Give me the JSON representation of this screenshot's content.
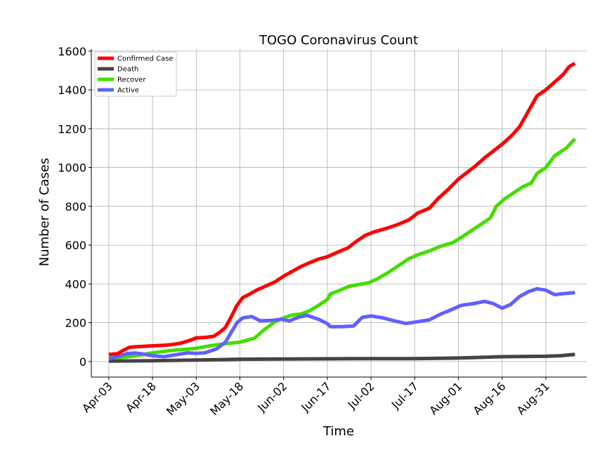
{
  "chart_data": {
    "type": "line",
    "title": "TOGO Coronavirus Count",
    "xlabel": "Time",
    "ylabel": "Number of Cases",
    "x_ticks": [
      "Apr-03",
      "Apr-18",
      "May-03",
      "May-18",
      "Jun-02",
      "Jun-17",
      "Jul-02",
      "Jul-17",
      "Aug-01",
      "Aug-16",
      "Aug-31"
    ],
    "y_ticks": [
      0,
      200,
      400,
      600,
      800,
      1000,
      1200,
      1400,
      1600
    ],
    "ylim": [
      -80,
      1610
    ],
    "xlim": [
      "2020-03-28",
      "2020-09-14"
    ],
    "grid": true,
    "legend_position": "top-left",
    "series": [
      {
        "name": "Confirmed Case",
        "color": "#ff0000",
        "points": [
          [
            "2020-04-03",
            36
          ],
          [
            "2020-04-06",
            40
          ],
          [
            "2020-04-08",
            58
          ],
          [
            "2020-04-10",
            73
          ],
          [
            "2020-04-12",
            76
          ],
          [
            "2020-04-15",
            78
          ],
          [
            "2020-04-18",
            81
          ],
          [
            "2020-04-22",
            84
          ],
          [
            "2020-04-25",
            88
          ],
          [
            "2020-04-28",
            96
          ],
          [
            "2020-05-01",
            110
          ],
          [
            "2020-05-03",
            122
          ],
          [
            "2020-05-06",
            124
          ],
          [
            "2020-05-09",
            130
          ],
          [
            "2020-05-11",
            150
          ],
          [
            "2020-05-13",
            175
          ],
          [
            "2020-05-15",
            230
          ],
          [
            "2020-05-17",
            290
          ],
          [
            "2020-05-19",
            330
          ],
          [
            "2020-05-21",
            345
          ],
          [
            "2020-05-24",
            370
          ],
          [
            "2020-05-27",
            390
          ],
          [
            "2020-05-30",
            410
          ],
          [
            "2020-06-02",
            440
          ],
          [
            "2020-06-05",
            465
          ],
          [
            "2020-06-08",
            490
          ],
          [
            "2020-06-11",
            510
          ],
          [
            "2020-06-14",
            528
          ],
          [
            "2020-06-17",
            540
          ],
          [
            "2020-06-20",
            560
          ],
          [
            "2020-06-24",
            585
          ],
          [
            "2020-06-27",
            620
          ],
          [
            "2020-06-30",
            650
          ],
          [
            "2020-07-03",
            668
          ],
          [
            "2020-07-07",
            685
          ],
          [
            "2020-07-11",
            705
          ],
          [
            "2020-07-15",
            730
          ],
          [
            "2020-07-18",
            765
          ],
          [
            "2020-07-22",
            790
          ],
          [
            "2020-07-25",
            840
          ],
          [
            "2020-07-28",
            880
          ],
          [
            "2020-08-01",
            940
          ],
          [
            "2020-08-04",
            975
          ],
          [
            "2020-08-07",
            1010
          ],
          [
            "2020-08-10",
            1050
          ],
          [
            "2020-08-13",
            1085
          ],
          [
            "2020-08-16",
            1120
          ],
          [
            "2020-08-19",
            1160
          ],
          [
            "2020-08-22",
            1210
          ],
          [
            "2020-08-25",
            1290
          ],
          [
            "2020-08-28",
            1370
          ],
          [
            "2020-08-31",
            1400
          ],
          [
            "2020-09-03",
            1440
          ],
          [
            "2020-09-06",
            1480
          ],
          [
            "2020-09-08",
            1520
          ],
          [
            "2020-09-10",
            1537
          ]
        ]
      },
      {
        "name": "Death",
        "color": "#444444",
        "points": [
          [
            "2020-04-03",
            2
          ],
          [
            "2020-04-18",
            4
          ],
          [
            "2020-05-03",
            8
          ],
          [
            "2020-05-18",
            12
          ],
          [
            "2020-06-02",
            13
          ],
          [
            "2020-06-17",
            14
          ],
          [
            "2020-07-02",
            15
          ],
          [
            "2020-07-17",
            15
          ],
          [
            "2020-08-01",
            18
          ],
          [
            "2020-08-10",
            22
          ],
          [
            "2020-08-16",
            25
          ],
          [
            "2020-08-31",
            27
          ],
          [
            "2020-09-05",
            30
          ],
          [
            "2020-09-10",
            37
          ]
        ]
      },
      {
        "name": "Recover",
        "color": "#44dd00",
        "points": [
          [
            "2020-04-03",
            18
          ],
          [
            "2020-04-08",
            22
          ],
          [
            "2020-04-13",
            32
          ],
          [
            "2020-04-18",
            45
          ],
          [
            "2020-04-25",
            58
          ],
          [
            "2020-05-03",
            68
          ],
          [
            "2020-05-08",
            82
          ],
          [
            "2020-05-13",
            92
          ],
          [
            "2020-05-18",
            100
          ],
          [
            "2020-05-23",
            120
          ],
          [
            "2020-05-26",
            160
          ],
          [
            "2020-05-30",
            205
          ],
          [
            "2020-06-02",
            225
          ],
          [
            "2020-06-05",
            240
          ],
          [
            "2020-06-08",
            245
          ],
          [
            "2020-06-11",
            262
          ],
          [
            "2020-06-14",
            290
          ],
          [
            "2020-06-17",
            320
          ],
          [
            "2020-06-18",
            348
          ],
          [
            "2020-06-21",
            365
          ],
          [
            "2020-06-24",
            385
          ],
          [
            "2020-06-27",
            395
          ],
          [
            "2020-07-01",
            405
          ],
          [
            "2020-07-04",
            425
          ],
          [
            "2020-07-08",
            460
          ],
          [
            "2020-07-12",
            500
          ],
          [
            "2020-07-15",
            530
          ],
          [
            "2020-07-18",
            550
          ],
          [
            "2020-07-22",
            570
          ],
          [
            "2020-07-26",
            595
          ],
          [
            "2020-07-30",
            612
          ],
          [
            "2020-08-02",
            640
          ],
          [
            "2020-08-06",
            680
          ],
          [
            "2020-08-10",
            720
          ],
          [
            "2020-08-12",
            740
          ],
          [
            "2020-08-14",
            800
          ],
          [
            "2020-08-17",
            840
          ],
          [
            "2020-08-20",
            870
          ],
          [
            "2020-08-23",
            900
          ],
          [
            "2020-08-26",
            920
          ],
          [
            "2020-08-28",
            970
          ],
          [
            "2020-08-31",
            1000
          ],
          [
            "2020-09-03",
            1060
          ],
          [
            "2020-09-07",
            1100
          ],
          [
            "2020-09-10",
            1147
          ]
        ]
      },
      {
        "name": "Active",
        "color": "#6060ff",
        "points": [
          [
            "2020-04-03",
            14
          ],
          [
            "2020-04-06",
            25
          ],
          [
            "2020-04-09",
            40
          ],
          [
            "2020-04-12",
            44
          ],
          [
            "2020-04-15",
            38
          ],
          [
            "2020-04-18",
            30
          ],
          [
            "2020-04-22",
            25
          ],
          [
            "2020-04-26",
            35
          ],
          [
            "2020-04-30",
            45
          ],
          [
            "2020-05-03",
            42
          ],
          [
            "2020-05-06",
            45
          ],
          [
            "2020-05-10",
            65
          ],
          [
            "2020-05-13",
            100
          ],
          [
            "2020-05-15",
            150
          ],
          [
            "2020-05-17",
            200
          ],
          [
            "2020-05-19",
            225
          ],
          [
            "2020-05-22",
            232
          ],
          [
            "2020-05-25",
            210
          ],
          [
            "2020-05-29",
            212
          ],
          [
            "2020-06-01",
            218
          ],
          [
            "2020-06-04",
            210
          ],
          [
            "2020-06-07",
            228
          ],
          [
            "2020-06-10",
            238
          ],
          [
            "2020-06-14",
            218
          ],
          [
            "2020-06-17",
            195
          ],
          [
            "2020-06-18",
            180
          ],
          [
            "2020-06-22",
            180
          ],
          [
            "2020-06-26",
            183
          ],
          [
            "2020-06-29",
            228
          ],
          [
            "2020-07-02",
            235
          ],
          [
            "2020-07-06",
            225
          ],
          [
            "2020-07-10",
            210
          ],
          [
            "2020-07-14",
            196
          ],
          [
            "2020-07-18",
            205
          ],
          [
            "2020-07-22",
            215
          ],
          [
            "2020-07-26",
            245
          ],
          [
            "2020-07-30",
            270
          ],
          [
            "2020-08-02",
            290
          ],
          [
            "2020-08-06",
            298
          ],
          [
            "2020-08-10",
            310
          ],
          [
            "2020-08-13",
            298
          ],
          [
            "2020-08-16",
            275
          ],
          [
            "2020-08-19",
            295
          ],
          [
            "2020-08-22",
            335
          ],
          [
            "2020-08-25",
            360
          ],
          [
            "2020-08-28",
            375
          ],
          [
            "2020-08-31",
            368
          ],
          [
            "2020-09-03",
            345
          ],
          [
            "2020-09-06",
            350
          ],
          [
            "2020-09-10",
            355
          ]
        ]
      }
    ]
  }
}
